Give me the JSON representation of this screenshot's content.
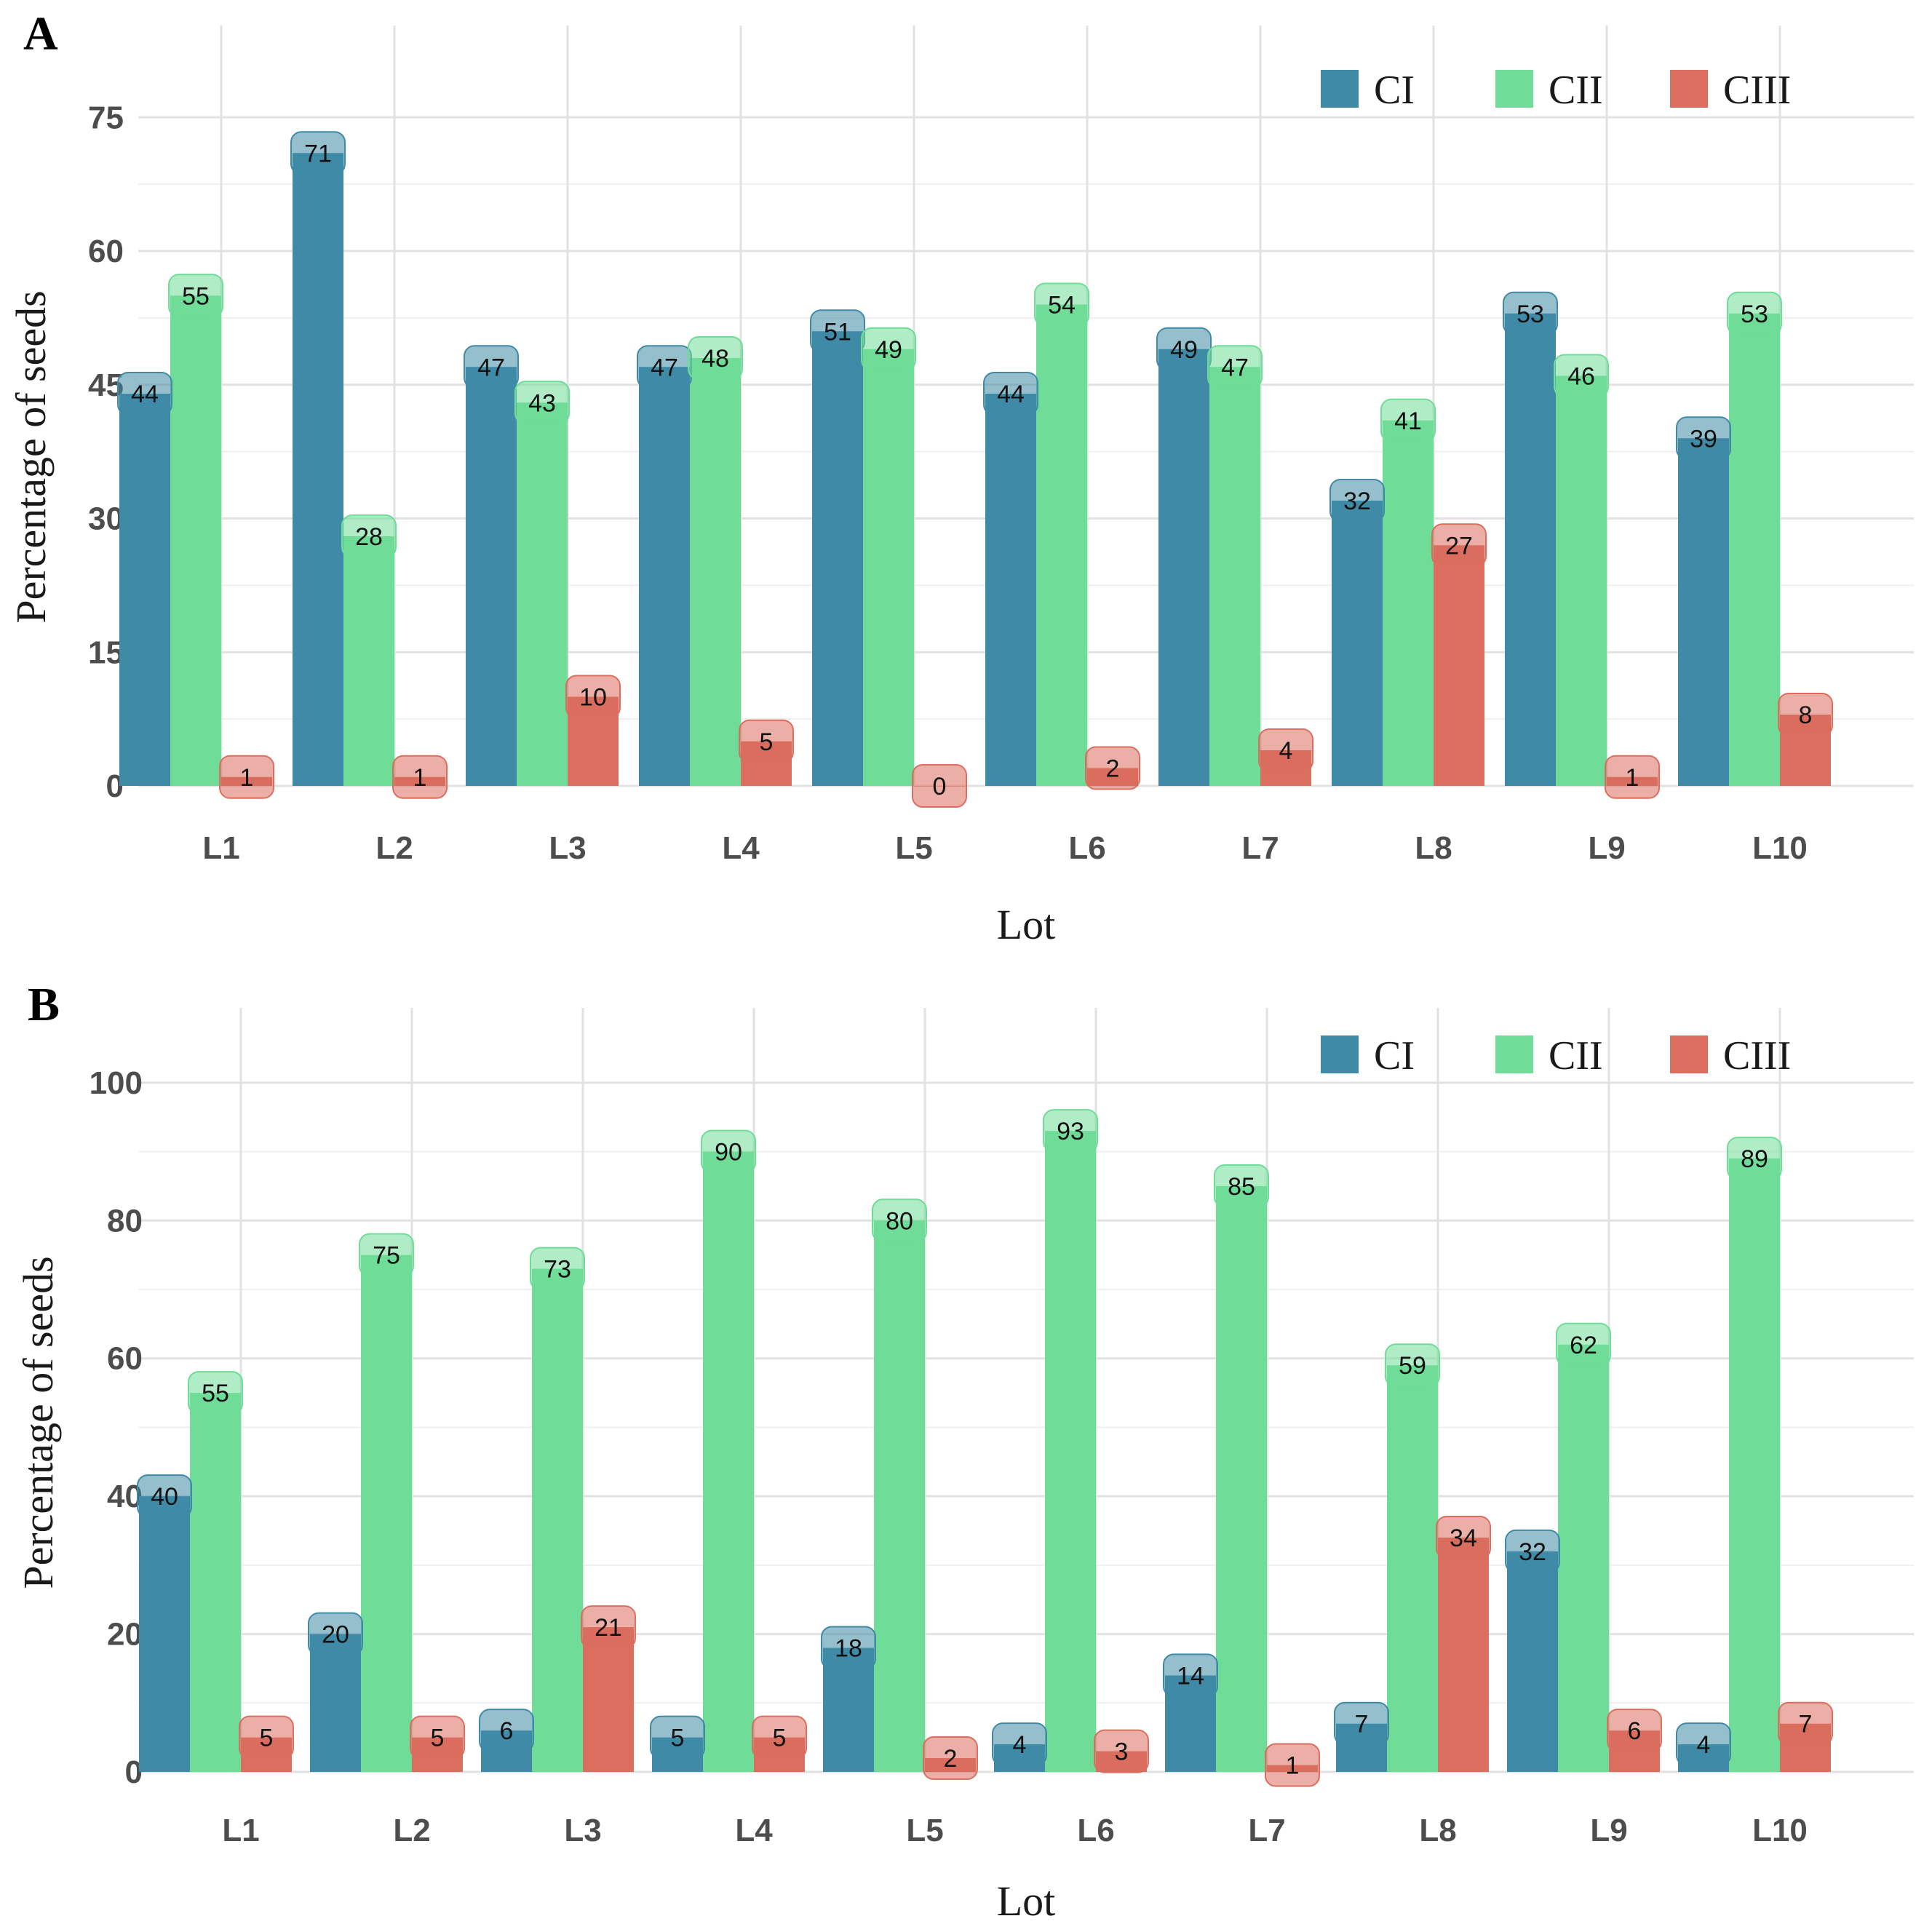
{
  "colors": {
    "CI": "#3f8aa6",
    "CII": "#6fdc98",
    "CIII": "#db6e5f"
  },
  "chart_data": [
    {
      "type": "bar",
      "panel_label": "A",
      "title": "",
      "xlabel": "Lot",
      "ylabel": "Percentage of seeds",
      "ylim": [
        0,
        80
      ],
      "yticks": [
        0,
        15,
        30,
        45,
        60,
        75
      ],
      "minor_step": 7.5,
      "grid": true,
      "legend_position": "top-right",
      "categories": [
        "L1",
        "L2",
        "L3",
        "L4",
        "L5",
        "L6",
        "L7",
        "L8",
        "L9",
        "L10"
      ],
      "series": [
        {
          "name": "CI",
          "values": [
            44,
            71,
            47,
            47,
            51,
            44,
            49,
            32,
            53,
            39
          ]
        },
        {
          "name": "CII",
          "values": [
            55,
            28,
            43,
            48,
            49,
            54,
            47,
            41,
            46,
            53
          ]
        },
        {
          "name": "CIII",
          "values": [
            1,
            1,
            10,
            5,
            0,
            2,
            4,
            27,
            1,
            8
          ]
        }
      ]
    },
    {
      "type": "bar",
      "panel_label": "B",
      "title": "",
      "xlabel": "Lot",
      "ylabel": "Percentage of seeds",
      "ylim": [
        0,
        104
      ],
      "yticks": [
        0,
        20,
        40,
        60,
        80,
        100
      ],
      "minor_step": 10,
      "grid": true,
      "legend_position": "top-right",
      "categories": [
        "L1",
        "L2",
        "L3",
        "L4",
        "L5",
        "L6",
        "L7",
        "L8",
        "L9",
        "L10"
      ],
      "series": [
        {
          "name": "CI",
          "values": [
            40,
            20,
            6,
            5,
            18,
            4,
            14,
            7,
            32,
            4
          ]
        },
        {
          "name": "CII",
          "values": [
            55,
            75,
            73,
            90,
            80,
            93,
            85,
            59,
            62,
            89
          ]
        },
        {
          "name": "CIII",
          "values": [
            5,
            5,
            21,
            5,
            2,
            3,
            1,
            34,
            6,
            7
          ]
        }
      ]
    }
  ]
}
